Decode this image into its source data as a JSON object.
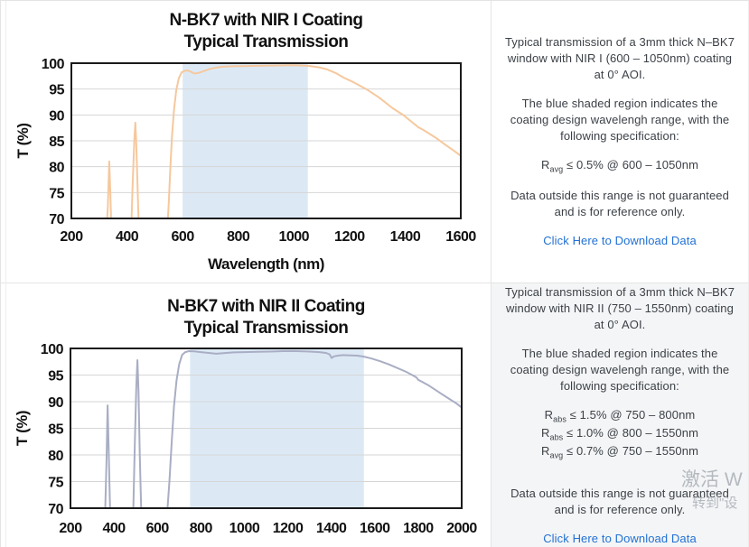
{
  "sections": [
    {
      "info": {
        "p1": "Typical transmission of a 3mm thick N–BK7 window with NIR I (600 – 1050nm) coating at 0° AOI.",
        "p2": "The blue shaded region indicates the coating design wavelengh range, with the following specification:",
        "specs": [
          {
            "prefix": "R",
            "sub": "avg",
            "rest": " ≤ 0.5% @ 600 – 1050nm"
          }
        ],
        "p3": "Data outside this range is not guaranteed and is for reference only.",
        "link": "Click Here to Download Data"
      }
    },
    {
      "info": {
        "p1": "Typical transmission of a 3mm thick N–BK7 window with NIR II (750 – 1550nm) coating at 0° AOI.",
        "p2": "The blue shaded region indicates the coating design wavelengh range, with the following specification:",
        "specs": [
          {
            "prefix": "R",
            "sub": "abs",
            "rest": " ≤ 1.5% @ 750 – 800nm"
          },
          {
            "prefix": "R",
            "sub": "abs",
            "rest": " ≤ 1.0% @ 800 – 1550nm"
          },
          {
            "prefix": "R",
            "sub": "avg",
            "rest": " ≤ 0.7% @ 750 – 1550nm"
          }
        ],
        "p3": "Data outside this range is not guaranteed and is for reference only.",
        "link": "Click Here to Download Data"
      }
    }
  ],
  "watermark": {
    "line1": "激活 W",
    "line2": "转到\"设"
  },
  "chart_data": [
    {
      "type": "line",
      "title_lines": [
        "N-BK7 with NIR I Coating",
        "Typical Transmission"
      ],
      "xlabel": "Wavelength (nm)",
      "ylabel": "T (%)",
      "xlim": [
        200,
        1600
      ],
      "ylim": [
        70,
        100
      ],
      "xticks": [
        200,
        400,
        600,
        800,
        1000,
        1200,
        1400,
        1600
      ],
      "yticks": [
        70,
        75,
        80,
        85,
        90,
        95,
        100
      ],
      "shade_range": [
        600,
        1050
      ],
      "shade_color": "#dce9f5",
      "line_color": "#f6c89d",
      "grid": "horizontal",
      "points": [
        [
          316,
          62
        ],
        [
          326,
          68
        ],
        [
          331,
          72
        ],
        [
          336,
          81
        ],
        [
          340,
          75
        ],
        [
          345,
          66
        ],
        [
          348,
          58
        ],
        [
          408,
          58
        ],
        [
          414,
          66
        ],
        [
          420,
          76
        ],
        [
          426,
          85
        ],
        [
          430,
          88.5
        ],
        [
          433,
          85
        ],
        [
          438,
          76
        ],
        [
          443,
          67
        ],
        [
          447,
          58
        ],
        [
          460,
          50
        ],
        [
          535,
          50
        ],
        [
          545,
          68
        ],
        [
          550,
          73
        ],
        [
          556,
          80
        ],
        [
          562,
          86
        ],
        [
          569,
          91
        ],
        [
          577,
          94.8
        ],
        [
          586,
          97
        ],
        [
          596,
          98.2
        ],
        [
          606,
          98.5
        ],
        [
          616,
          98.6
        ],
        [
          628,
          98.4
        ],
        [
          642,
          98.0
        ],
        [
          656,
          98.1
        ],
        [
          672,
          98.4
        ],
        [
          692,
          98.8
        ],
        [
          715,
          99.1
        ],
        [
          740,
          99.3
        ],
        [
          775,
          99.4
        ],
        [
          820,
          99.45
        ],
        [
          870,
          99.5
        ],
        [
          930,
          99.55
        ],
        [
          990,
          99.6
        ],
        [
          1030,
          99.55
        ],
        [
          1060,
          99.45
        ],
        [
          1090,
          99.2
        ],
        [
          1120,
          98.8
        ],
        [
          1150,
          98.1
        ],
        [
          1180,
          97.2
        ],
        [
          1215,
          96.3
        ],
        [
          1260,
          95.0
        ],
        [
          1305,
          93.4
        ],
        [
          1355,
          91.3
        ],
        [
          1395,
          89.9
        ],
        [
          1425,
          88.6
        ],
        [
          1448,
          87.6
        ],
        [
          1462,
          87.2
        ],
        [
          1480,
          86.6
        ],
        [
          1510,
          85.6
        ],
        [
          1545,
          84.2
        ],
        [
          1575,
          83.1
        ],
        [
          1600,
          82.1
        ]
      ]
    },
    {
      "type": "line",
      "title_lines": [
        "N-BK7 with NIR II Coating",
        "Typical Transmission"
      ],
      "xlabel": "",
      "ylabel": "T (%)",
      "xlim": [
        200,
        2000
      ],
      "ylim": [
        70,
        100
      ],
      "xticks": [
        200,
        400,
        600,
        800,
        1000,
        1200,
        1400,
        1600,
        1800,
        2000
      ],
      "yticks": [
        70,
        75,
        80,
        85,
        90,
        95,
        100
      ],
      "shade_range": [
        750,
        1550
      ],
      "shade_color": "#dce9f5",
      "line_color": "#a9aec4",
      "grid": "horizontal",
      "points": [
        [
          352,
          62
        ],
        [
          360,
          70
        ],
        [
          366,
          79
        ],
        [
          371,
          89.3
        ],
        [
          376,
          81
        ],
        [
          382,
          70
        ],
        [
          388,
          60
        ],
        [
          478,
          58
        ],
        [
          488,
          68
        ],
        [
          496,
          82
        ],
        [
          503,
          93
        ],
        [
          508,
          97.8
        ],
        [
          513,
          92
        ],
        [
          519,
          80
        ],
        [
          526,
          69
        ],
        [
          532,
          61
        ],
        [
          615,
          60
        ],
        [
          632,
          64
        ],
        [
          645,
          69
        ],
        [
          655,
          75
        ],
        [
          665,
          82
        ],
        [
          676,
          89
        ],
        [
          688,
          94
        ],
        [
          700,
          97
        ],
        [
          714,
          98.8
        ],
        [
          728,
          99.3
        ],
        [
          745,
          99.5
        ],
        [
          770,
          99.45
        ],
        [
          800,
          99.3
        ],
        [
          835,
          99.15
        ],
        [
          870,
          99.0
        ],
        [
          905,
          99.1
        ],
        [
          950,
          99.25
        ],
        [
          1000,
          99.3
        ],
        [
          1060,
          99.35
        ],
        [
          1120,
          99.4
        ],
        [
          1180,
          99.5
        ],
        [
          1240,
          99.5
        ],
        [
          1300,
          99.4
        ],
        [
          1345,
          99.3
        ],
        [
          1375,
          99.15
        ],
        [
          1392,
          98.9
        ],
        [
          1402,
          98.2
        ],
        [
          1412,
          98.5
        ],
        [
          1430,
          98.65
        ],
        [
          1455,
          98.75
        ],
        [
          1490,
          98.7
        ],
        [
          1520,
          98.65
        ],
        [
          1550,
          98.45
        ],
        [
          1585,
          98.1
        ],
        [
          1625,
          97.6
        ],
        [
          1665,
          97.0
        ],
        [
          1705,
          96.3
        ],
        [
          1745,
          95.6
        ],
        [
          1777,
          94.9
        ],
        [
          1793,
          94.5
        ],
        [
          1800,
          94.1
        ],
        [
          1815,
          93.8
        ],
        [
          1850,
          93.0
        ],
        [
          1895,
          91.8
        ],
        [
          1940,
          90.6
        ],
        [
          1975,
          89.7
        ],
        [
          2000,
          88.9
        ]
      ]
    }
  ]
}
